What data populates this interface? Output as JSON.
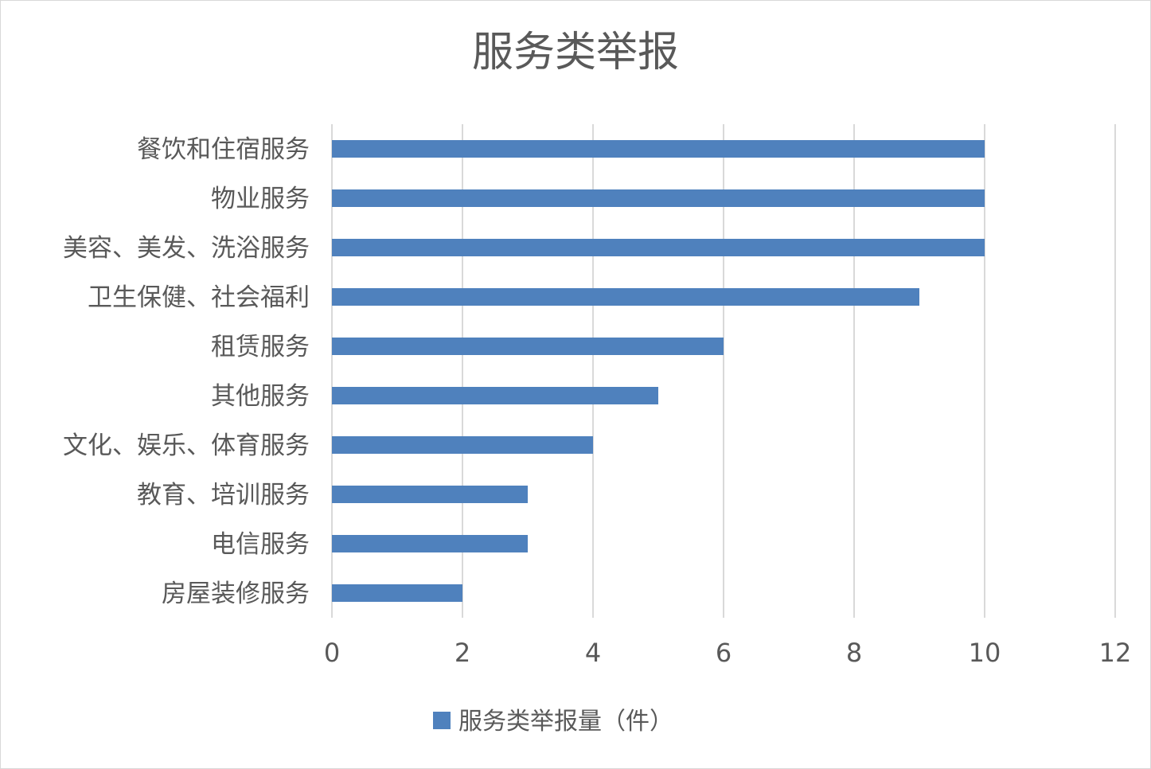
{
  "chart_data": {
    "type": "bar",
    "orientation": "horizontal",
    "title": "服务类举报",
    "categories": [
      "餐饮和住宿服务",
      "物业服务",
      "美容、美发、洗浴服务",
      "卫生保健、社会福利",
      "租赁服务",
      "其他服务",
      "文化、娱乐、体育服务",
      "教育、培训服务",
      "电信服务",
      "房屋装修服务"
    ],
    "series": [
      {
        "name": "服务类举报量（件）",
        "values": [
          10,
          10,
          10,
          9,
          6,
          5,
          4,
          3,
          3,
          2
        ],
        "color": "#4f81bd"
      }
    ],
    "xlim": [
      0,
      12
    ],
    "xticks": [
      "0",
      "2",
      "4",
      "6",
      "8",
      "10",
      "12"
    ],
    "xlabel": "",
    "ylabel": "",
    "grid": true,
    "legend": "bottom"
  }
}
